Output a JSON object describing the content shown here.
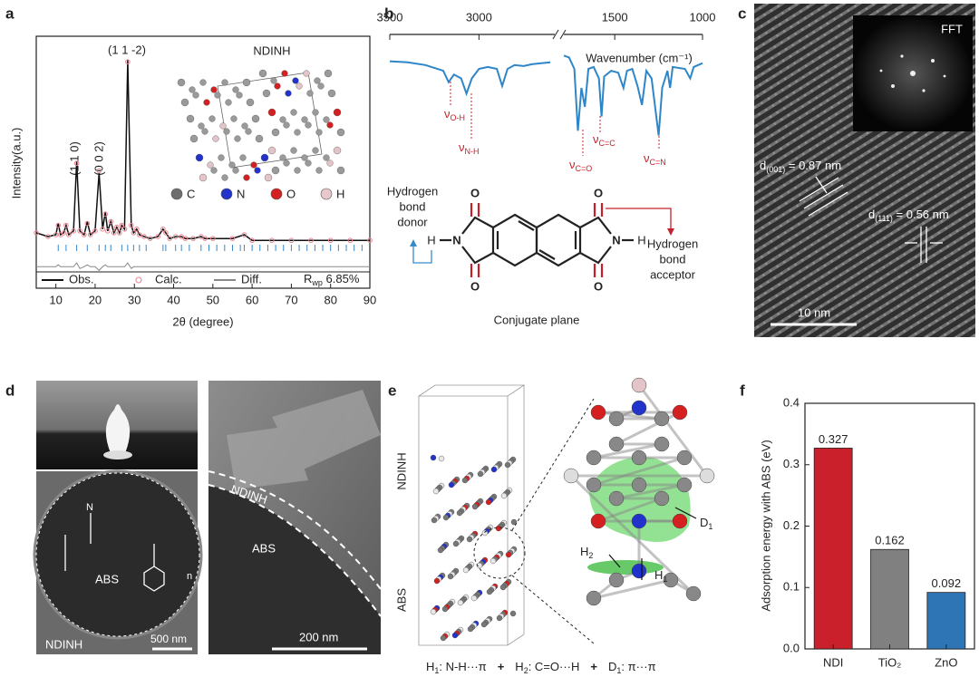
{
  "panel_labels": [
    "a",
    "b",
    "c",
    "d",
    "e",
    "f"
  ],
  "chart_data": [
    {
      "type": "line",
      "x_label": "2θ (degree)",
      "y_label": "Intensity(a.u.)",
      "x": [
        5,
        8,
        10,
        10.6,
        11.2,
        12,
        12.6,
        13.3,
        14.5,
        15.3,
        16.1,
        17.2,
        18,
        18.8,
        20,
        21,
        21.9,
        22.6,
        23.2,
        24,
        24.8,
        25.5,
        26.2,
        26.8,
        27.5,
        28.3,
        29.2,
        29.8,
        30.6,
        31.3,
        32.5,
        34,
        36,
        37.3,
        38,
        39,
        40.5,
        42,
        43,
        45,
        47,
        48,
        50,
        55,
        58,
        60,
        65,
        70,
        75,
        80,
        85,
        90
      ],
      "series": [
        {
          "name": "Obs.",
          "color": "#111111",
          "marker": "line",
          "values": [
            0.08,
            0.06,
            0.07,
            0.13,
            0.07,
            0.08,
            0.12,
            0.07,
            0.09,
            0.46,
            0.09,
            0.07,
            0.14,
            0.07,
            0.09,
            0.4,
            0.1,
            0.19,
            0.09,
            0.14,
            0.08,
            0.11,
            0.08,
            0.12,
            0.1,
            1.0,
            0.12,
            0.08,
            0.1,
            0.07,
            0.06,
            0.05,
            0.06,
            0.1,
            0.08,
            0.05,
            0.06,
            0.06,
            0.05,
            0.05,
            0.06,
            0.05,
            0.05,
            0.05,
            0.07,
            0.04,
            0.04,
            0.04,
            0.04,
            0.04,
            0.04,
            0.04
          ]
        },
        {
          "name": "Calc.",
          "color": "#e8838f",
          "marker": "circle",
          "values": [
            0.08,
            0.06,
            0.07,
            0.12,
            0.07,
            0.08,
            0.12,
            0.07,
            0.09,
            0.45,
            0.09,
            0.07,
            0.13,
            0.07,
            0.09,
            0.41,
            0.1,
            0.18,
            0.09,
            0.14,
            0.08,
            0.11,
            0.08,
            0.12,
            0.1,
            0.99,
            0.12,
            0.08,
            0.1,
            0.07,
            0.06,
            0.05,
            0.06,
            0.1,
            0.08,
            0.05,
            0.06,
            0.06,
            0.05,
            0.05,
            0.06,
            0.05,
            0.05,
            0.05,
            0.07,
            0.04,
            0.04,
            0.04,
            0.04,
            0.04,
            0.04,
            0.04
          ]
        },
        {
          "name": "Diff.",
          "color": "#888888",
          "marker": "line",
          "values": [
            -0.1,
            -0.1,
            -0.1,
            -0.09,
            -0.1,
            -0.1,
            -0.1,
            -0.1,
            -0.1,
            -0.08,
            -0.11,
            -0.1,
            -0.09,
            -0.1,
            -0.1,
            -0.12,
            -0.1,
            -0.09,
            -0.1,
            -0.1,
            -0.1,
            -0.1,
            -0.1,
            -0.1,
            -0.1,
            -0.08,
            -0.11,
            -0.1,
            -0.1,
            -0.1,
            -0.1,
            -0.1,
            -0.1,
            -0.1,
            -0.1,
            -0.1,
            -0.1,
            -0.1,
            -0.1,
            -0.1,
            -0.1,
            -0.1,
            -0.1,
            -0.1,
            -0.1,
            -0.1,
            -0.1,
            -0.1,
            -0.1,
            -0.1,
            -0.1,
            -0.1
          ]
        }
      ],
      "bragg_positions": [
        10.6,
        12.6,
        15.3,
        18,
        21,
        22.6,
        24,
        26.8,
        28.3,
        29.8,
        31.3,
        33,
        37.3,
        38,
        40.5,
        42,
        44,
        47,
        49,
        51,
        53,
        55,
        57,
        58,
        60,
        62,
        64,
        66,
        68,
        70,
        72,
        74,
        76,
        78,
        80,
        82,
        84,
        86,
        88
      ],
      "bragg_color": "#3a86c4",
      "xlim": [
        5,
        90
      ],
      "ylim": [
        -0.2,
        1.02
      ],
      "xticks": [
        10,
        20,
        30,
        40,
        50,
        60,
        70,
        80,
        90
      ],
      "fit_label": {
        "main": "R",
        "sub": "wp",
        "rest": " 6.85%"
      },
      "annotations": [
        "(1 1 -2)",
        "(1 1 0)",
        "(0 0 2)",
        "NDINH"
      ],
      "atom_legend": [
        {
          "label": "C",
          "color": "#6e6e6e"
        },
        {
          "label": "N",
          "color": "#2233cc"
        },
        {
          "label": "O",
          "color": "#d42020"
        },
        {
          "label": "H",
          "color": "#e8c8cc"
        }
      ]
    },
    {
      "type": "line",
      "x_label": "Wavenumber (cm⁻¹)",
      "x": [
        3500,
        3400,
        3300,
        3200,
        3170,
        3140,
        3100,
        3070,
        3040,
        3000,
        2950,
        2900,
        2870,
        2840,
        2800,
        2750,
        2700,
        2650,
        2600,
        2200,
        1790,
        1760,
        1730,
        1710,
        1690,
        1670,
        1650,
        1620,
        1590,
        1575,
        1560,
        1520,
        1480,
        1450,
        1430,
        1400,
        1370,
        1345,
        1320,
        1290,
        1270,
        1250,
        1230,
        1200,
        1185,
        1170,
        1100,
        1070,
        1050,
        1000
      ],
      "series": [
        {
          "color": "#2e86c8",
          "values": [
            0.88,
            0.87,
            0.84,
            0.78,
            0.66,
            0.74,
            0.7,
            0.54,
            0.7,
            0.8,
            0.82,
            0.8,
            0.62,
            0.8,
            0.84,
            0.83,
            0.85,
            0.86,
            0.87,
            null,
            0.94,
            0.92,
            0.8,
            0.15,
            0.6,
            0.4,
            0.8,
            0.82,
            0.7,
            0.3,
            0.72,
            0.78,
            0.76,
            0.6,
            0.78,
            0.8,
            0.62,
            0.42,
            0.78,
            0.7,
            0.4,
            0.1,
            0.6,
            0.78,
            0.6,
            0.82,
            0.8,
            0.7,
            0.82,
            0.86
          ]
        }
      ],
      "xlim": [
        3500,
        1000
      ],
      "axis_break": [
        2575,
        1790
      ],
      "ylim": [
        0,
        1
      ],
      "xticks": [
        3500,
        3000,
        1500,
        1000
      ],
      "annotations": [
        {
          "symbol": "ν",
          "sub": "O-H"
        },
        {
          "symbol": "ν",
          "sub": "N-H"
        },
        {
          "symbol": "ν",
          "sub": "C=O"
        },
        {
          "symbol": "ν",
          "sub": "C=C"
        },
        {
          "symbol": "ν",
          "sub": "C=N"
        }
      ],
      "molecule": {
        "atoms": [
          "O",
          "O",
          "O",
          "O",
          "N",
          "N",
          "H",
          "H"
        ],
        "donor": [
          "Hydrogen",
          "bond",
          "donor"
        ],
        "acceptor": [
          "Hydrogen",
          "bond",
          "acceptor"
        ],
        "caption": "Conjugate plane"
      }
    },
    {
      "type": "bar",
      "y_label": "Adsorption energy with ABS (eV)",
      "categories": [
        "NDI",
        "TiO₂",
        "ZnO"
      ],
      "values": [
        0.327,
        0.162,
        0.092
      ],
      "colors": [
        "#c9202b",
        "#808080",
        "#2e75b6"
      ],
      "ylim": [
        0,
        0.4
      ],
      "yticks": [
        {
          "value": 0,
          "label": "0.0"
        },
        0.1,
        0.2,
        0.3,
        0.4
      ]
    }
  ],
  "tem": {
    "fft": "FFT",
    "scale": "10 nm",
    "spacings": [
      {
        "main": "d",
        "sub": "(001)",
        "rest": " = 0.87 nm"
      },
      {
        "main": "d",
        "sub": "(111)",
        "rest": " = 0.56 nm"
      }
    ]
  },
  "photos": {
    "shell": "NDINH",
    "core": "ABS",
    "repeat": "n",
    "scale_left": "500 nm",
    "shell_right": "NDINH",
    "core_right": "ABS",
    "scale_right": "200 nm"
  },
  "model": {
    "top": "NDINH",
    "bottom": "ABS",
    "interactions": [
      "D",
      "1",
      "H",
      "2",
      "H",
      "1"
    ],
    "equation": [
      {
        "main": "H",
        "sub": "1",
        "rest": ": N-H···π"
      },
      {
        "main": "H",
        "sub": "2",
        "rest": ": C=O···H"
      },
      {
        "main": "D",
        "sub": "1",
        "rest": ": π···π"
      }
    ],
    "operator": "+"
  }
}
